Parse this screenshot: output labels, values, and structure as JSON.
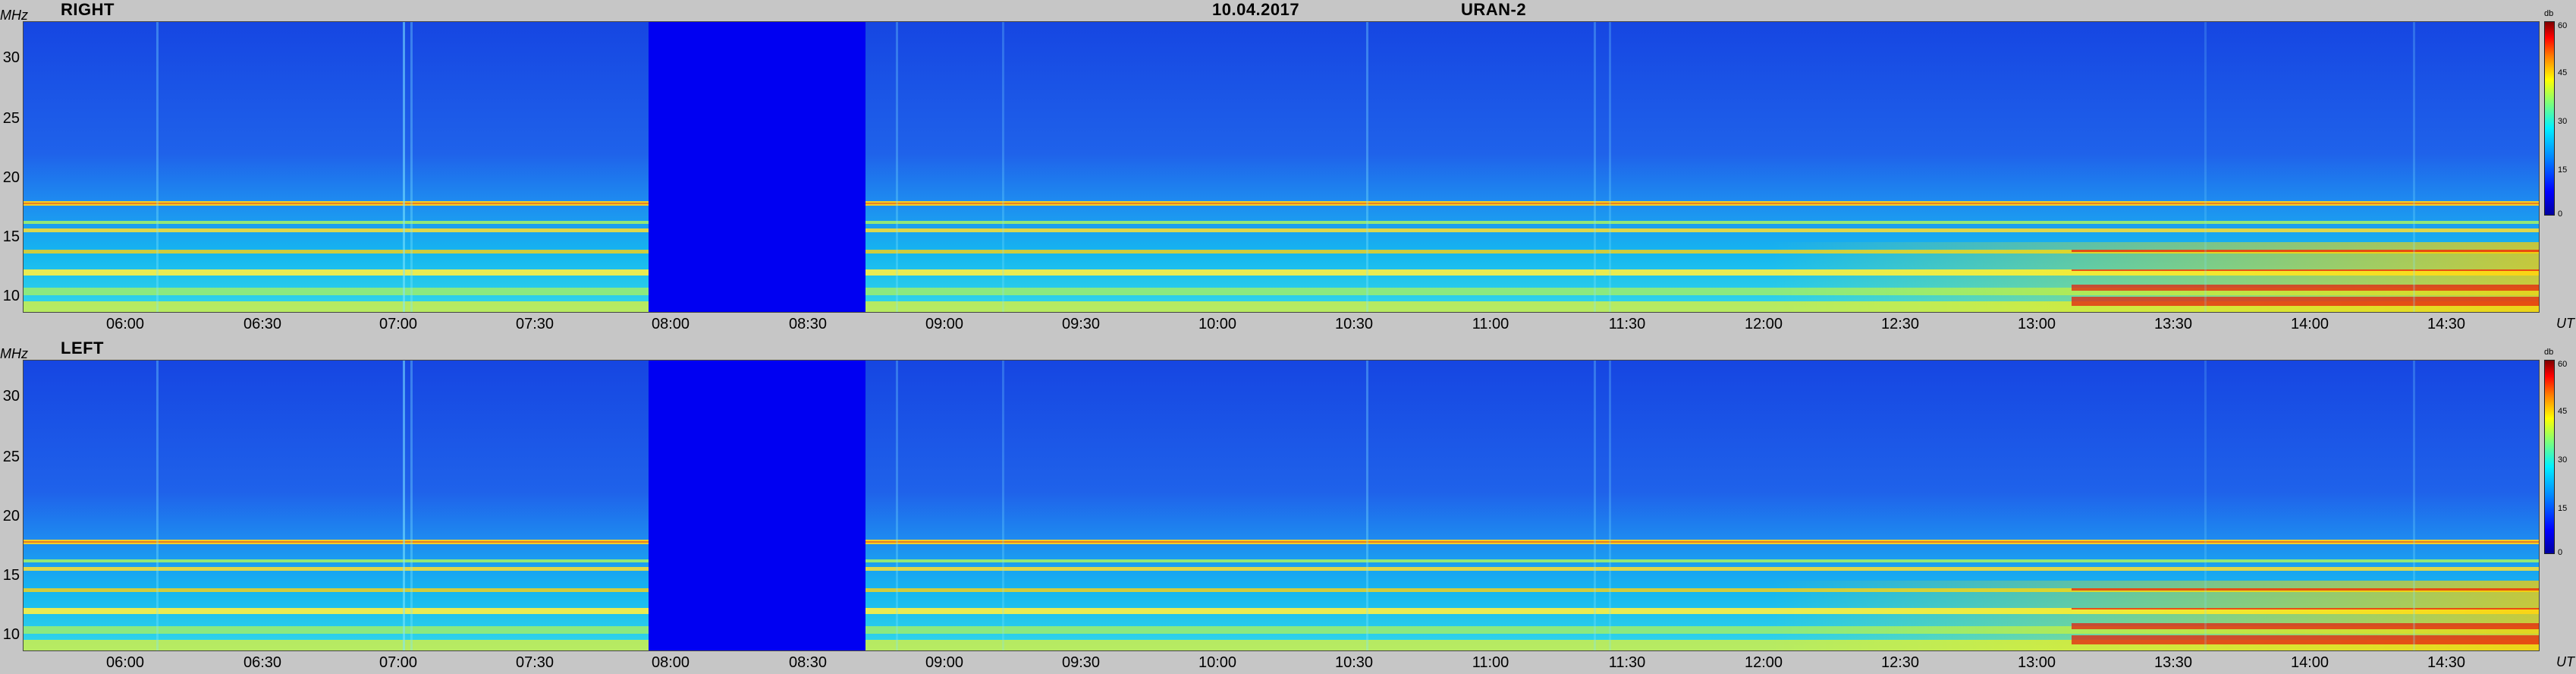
{
  "header": {
    "date": "10.04.2017",
    "instrument": "URAN-2"
  },
  "units": {
    "freq": "MHz",
    "time": "UT",
    "colorbar": "db"
  },
  "chart_data": [
    {
      "type": "heatmap",
      "title": "RIGHT",
      "ylabel": "MHz",
      "xlabel": "UT",
      "y_ticks": [
        "30",
        "25",
        "20",
        "15",
        "10"
      ],
      "x_ticks": [
        "06:00",
        "06:30",
        "07:00",
        "07:30",
        "08:00",
        "08:30",
        "09:00",
        "09:30",
        "10:00",
        "10:30",
        "11:00",
        "11:30",
        "12:00",
        "12:30",
        "13:00",
        "13:30",
        "14:00",
        "14:30"
      ],
      "colorbar_ticks": [
        "60",
        "45",
        "30",
        "15",
        "0"
      ],
      "colorbar_label": "db",
      "data_gap": [
        "08:00",
        "08:48"
      ],
      "zlim": [
        0,
        60
      ]
    },
    {
      "type": "heatmap",
      "title": "LEFT",
      "ylabel": "MHz",
      "xlabel": "UT",
      "y_ticks": [
        "30",
        "25",
        "20",
        "15",
        "10"
      ],
      "x_ticks": [
        "06:00",
        "06:30",
        "07:00",
        "07:30",
        "08:00",
        "08:30",
        "09:00",
        "09:30",
        "10:00",
        "10:30",
        "11:00",
        "11:30",
        "12:00",
        "12:30",
        "13:00",
        "13:30",
        "14:00",
        "14:30"
      ],
      "colorbar_ticks": [
        "60",
        "45",
        "30",
        "15",
        "0"
      ],
      "colorbar_label": "db",
      "data_gap": [
        "08:00",
        "08:48"
      ],
      "zlim": [
        0,
        60
      ]
    }
  ]
}
